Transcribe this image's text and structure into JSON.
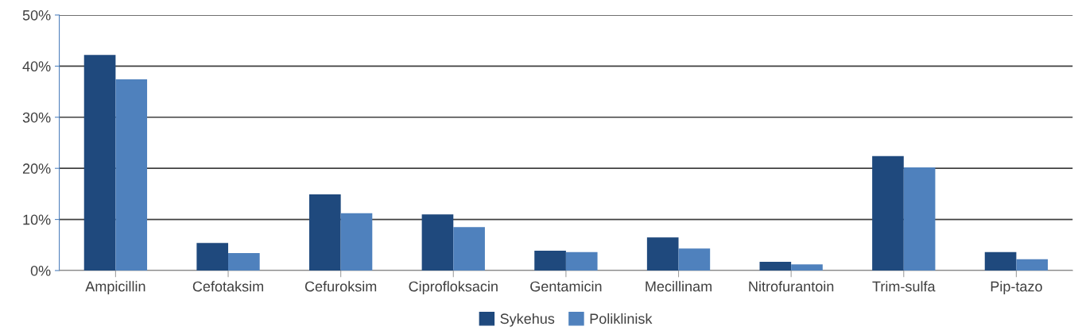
{
  "chart_data": {
    "type": "bar",
    "categories": [
      "Ampicillin",
      "Cefotaksim",
      "Cefuroksim",
      "Ciprofloksacin",
      "Gentamicin",
      "Mecillinam",
      "Nitrofurantoin",
      "Trim-sulfa",
      "Pip-tazo"
    ],
    "series": [
      {
        "name": "Sykehus",
        "color": "#1f497d",
        "values": [
          42.2,
          5.4,
          14.9,
          11.0,
          3.9,
          6.5,
          1.7,
          22.4,
          3.6
        ]
      },
      {
        "name": "Poliklinisk",
        "color": "#4f81bd",
        "values": [
          37.4,
          3.4,
          11.2,
          8.5,
          3.6,
          4.3,
          1.2,
          20.2,
          2.2
        ]
      }
    ],
    "ylim": [
      0,
      50
    ],
    "yticks": [
      {
        "value": 0,
        "label": "0%"
      },
      {
        "value": 10,
        "label": "10%"
      },
      {
        "value": 20,
        "label": "20%"
      },
      {
        "value": 30,
        "label": "30%"
      },
      {
        "value": 40,
        "label": "40%"
      },
      {
        "value": 50,
        "label": "50%"
      }
    ],
    "grid": "y",
    "legend": "bottom"
  }
}
